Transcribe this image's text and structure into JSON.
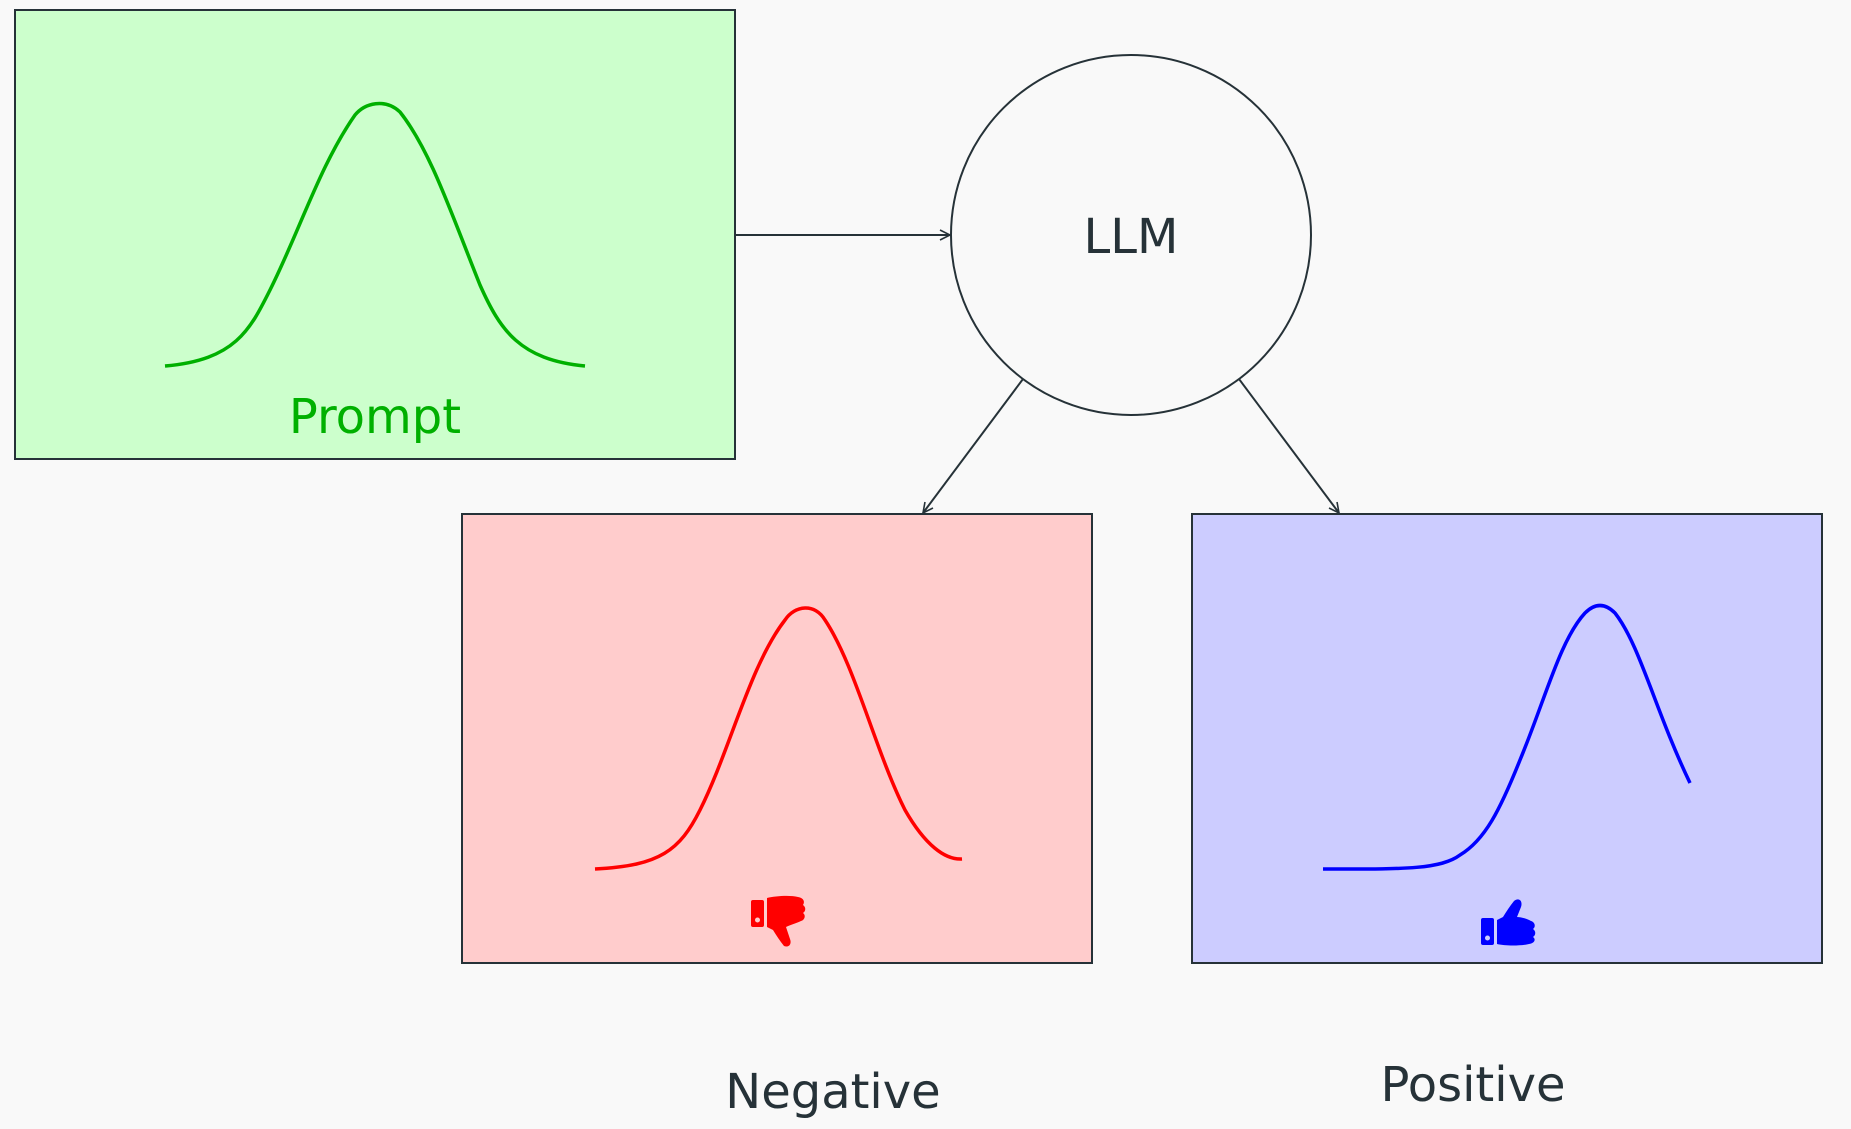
{
  "nodes": {
    "prompt": {
      "label": "Prompt"
    },
    "llm": {
      "label": "LLM"
    },
    "negative": {
      "label": "Negative",
      "icon": "thumbs-down-icon"
    },
    "positive": {
      "label": "Positive",
      "icon": "thumbs-up-icon"
    }
  },
  "colors": {
    "background": "#f9f9f9",
    "outline": "#263238",
    "prompt_fill": "#ccffcc",
    "prompt_curve": "#00b000",
    "negative_fill": "#ffcccc",
    "negative_curve": "#ff0000",
    "positive_fill": "#ccccff",
    "positive_curve": "#0000ff"
  },
  "edges": [
    {
      "from": "prompt",
      "to": "llm"
    },
    {
      "from": "llm",
      "to": "negative"
    },
    {
      "from": "llm",
      "to": "positive"
    }
  ]
}
